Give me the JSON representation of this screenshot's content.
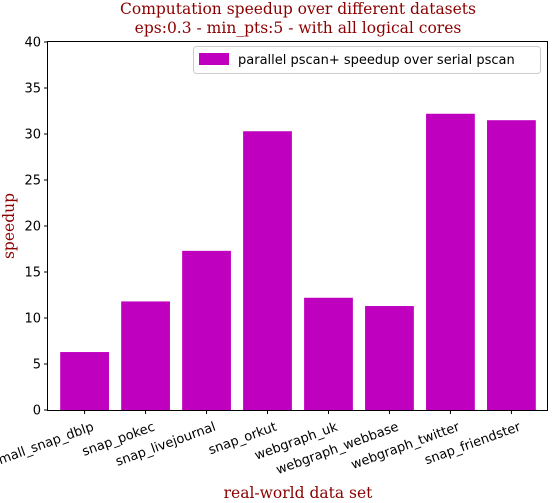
{
  "chart_data": {
    "type": "bar",
    "title_line1": "Computation speedup over different datasets",
    "title_line2": "eps:0.3 - min_pts:5 - with all logical cores",
    "xlabel": "real-world data set",
    "ylabel": "speedup",
    "ylim": [
      0,
      40
    ],
    "yticks": [
      "0",
      "5",
      "10",
      "15",
      "20",
      "25",
      "30",
      "35",
      "40"
    ],
    "categories": [
      "small_snap_dblp",
      "snap_pokec",
      "snap_livejournal",
      "snap_orkut",
      "webgraph_uk",
      "webgraph_webbase",
      "webgraph_twitter",
      "snap_friendster"
    ],
    "series": [
      {
        "name": "parallel pscan+ speedup over serial pscan",
        "values": [
          6.3,
          11.8,
          17.3,
          30.3,
          12.2,
          11.3,
          32.2,
          31.5
        ]
      }
    ],
    "legend_position": "top-right",
    "grid": false,
    "colors": {
      "bar": "#bf00bf",
      "title": "#8b0000",
      "axis": "#000000"
    }
  }
}
